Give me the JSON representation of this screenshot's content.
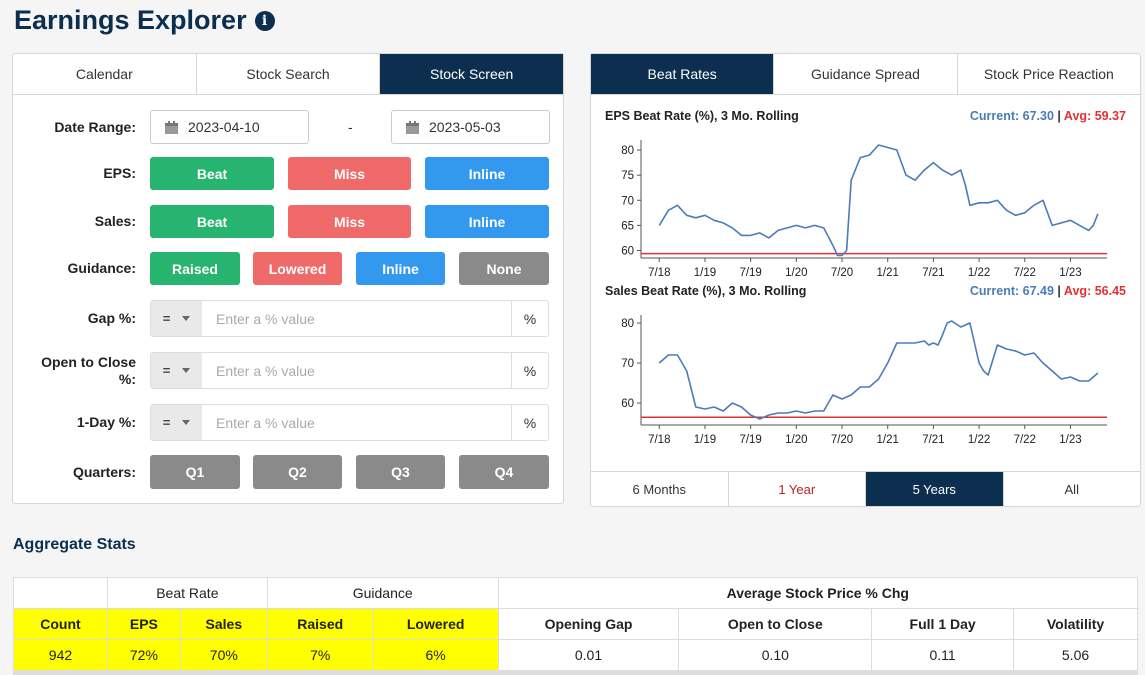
{
  "page": {
    "title": "Earnings Explorer",
    "info_icon": "i"
  },
  "left_tabs": [
    {
      "label": "Calendar",
      "active": false
    },
    {
      "label": "Stock Search",
      "active": false
    },
    {
      "label": "Stock Screen",
      "active": true
    }
  ],
  "filters": {
    "date_range": {
      "label": "Date Range:",
      "start": "2023-04-10",
      "separator": "-",
      "end": "2023-05-03"
    },
    "eps": {
      "label": "EPS:",
      "options": [
        "Beat",
        "Miss",
        "Inline"
      ]
    },
    "sales": {
      "label": "Sales:",
      "options": [
        "Beat",
        "Miss",
        "Inline"
      ]
    },
    "guidance": {
      "label": "Guidance:",
      "options": [
        "Raised",
        "Lowered",
        "Inline",
        "None"
      ]
    },
    "gap": {
      "label": "Gap %:",
      "operator": "=",
      "placeholder": "Enter a % value",
      "unit": "%"
    },
    "open_to_close": {
      "label_line1": "Open to Close",
      "label_line2": "%:",
      "operator": "=",
      "placeholder": "Enter a % value",
      "unit": "%"
    },
    "one_day": {
      "label": "1-Day %:",
      "operator": "=",
      "placeholder": "Enter a % value",
      "unit": "%"
    },
    "quarters": {
      "label": "Quarters:",
      "options": [
        "Q1",
        "Q2",
        "Q3",
        "Q4"
      ]
    }
  },
  "right_tabs": [
    {
      "label": "Beat Rates",
      "active": true
    },
    {
      "label": "Guidance Spread",
      "active": false
    },
    {
      "label": "Stock Price Reaction",
      "active": false
    }
  ],
  "range_tabs": [
    {
      "label": "6 Months",
      "active": false
    },
    {
      "label": "1 Year",
      "active": false
    },
    {
      "label": "5 Years",
      "active": true
    },
    {
      "label": "All",
      "active": false
    }
  ],
  "colors": {
    "navy": "#0d2f4f",
    "line": "#4a7cb8",
    "avg_line": "#e03232",
    "highlight": "#ffff00"
  },
  "chart_data": [
    {
      "type": "line",
      "title": "EPS Beat Rate (%), 3 Mo. Rolling",
      "current_label": "Current: 67.30",
      "separator": "|",
      "avg_label": "Avg: 59.37",
      "current": 67.3,
      "avg": 59.37,
      "ylim": [
        58.5,
        82
      ],
      "yticks": [
        60,
        65,
        70,
        75,
        80
      ],
      "xticks": [
        "7/18",
        "1/19",
        "7/19",
        "1/20",
        "7/20",
        "1/21",
        "7/21",
        "1/22",
        "7/22",
        "1/23"
      ],
      "x": [
        2018.5,
        2018.6,
        2018.7,
        2018.8,
        2018.9,
        2019.0,
        2019.1,
        2019.2,
        2019.3,
        2019.4,
        2019.5,
        2019.6,
        2019.7,
        2019.8,
        2019.9,
        2020.0,
        2020.1,
        2020.2,
        2020.3,
        2020.4,
        2020.45,
        2020.5,
        2020.55,
        2020.6,
        2020.7,
        2020.8,
        2020.9,
        2021.0,
        2021.1,
        2021.2,
        2021.3,
        2021.4,
        2021.5,
        2021.6,
        2021.7,
        2021.8,
        2021.85,
        2021.9,
        2022.0,
        2022.1,
        2022.2,
        2022.3,
        2022.4,
        2022.5,
        2022.6,
        2022.7,
        2022.8,
        2022.9,
        2023.0,
        2023.1,
        2023.2,
        2023.25,
        2023.3
      ],
      "series": [
        {
          "name": "EPS Beat Rate",
          "values": [
            65,
            68,
            69,
            67,
            66.5,
            67,
            66,
            65.5,
            64.5,
            63,
            63,
            63.5,
            62.5,
            64,
            64.5,
            65,
            64.5,
            65,
            64.5,
            61,
            59,
            59,
            60,
            74,
            78.5,
            79,
            81,
            80.5,
            80,
            75,
            74,
            76,
            77.5,
            76,
            75,
            76,
            73,
            69,
            69.5,
            69.5,
            70,
            68,
            67,
            67.5,
            69,
            70,
            65,
            65.5,
            66,
            65,
            64,
            65,
            67.3
          ]
        }
      ]
    },
    {
      "type": "line",
      "title": "Sales Beat Rate (%), 3 Mo. Rolling",
      "current_label": "Current: 67.49",
      "separator": "|",
      "avg_label": "Avg: 56.45",
      "current": 67.49,
      "avg": 56.45,
      "ylim": [
        54.5,
        82
      ],
      "yticks": [
        60,
        70,
        80
      ],
      "xticks": [
        "7/18",
        "1/19",
        "7/19",
        "1/20",
        "7/20",
        "1/21",
        "7/21",
        "1/22",
        "7/22",
        "1/23"
      ],
      "x": [
        2018.5,
        2018.6,
        2018.7,
        2018.8,
        2018.9,
        2019.0,
        2019.1,
        2019.2,
        2019.3,
        2019.4,
        2019.5,
        2019.6,
        2019.7,
        2019.8,
        2019.9,
        2020.0,
        2020.1,
        2020.2,
        2020.3,
        2020.4,
        2020.5,
        2020.6,
        2020.7,
        2020.8,
        2020.9,
        2021.0,
        2021.1,
        2021.2,
        2021.3,
        2021.4,
        2021.45,
        2021.5,
        2021.55,
        2021.6,
        2021.65,
        2021.7,
        2021.8,
        2021.9,
        2022.0,
        2022.05,
        2022.1,
        2022.2,
        2022.3,
        2022.4,
        2022.5,
        2022.6,
        2022.7,
        2022.8,
        2022.9,
        2023.0,
        2023.1,
        2023.2,
        2023.3
      ],
      "series": [
        {
          "name": "Sales Beat Rate",
          "values": [
            70,
            72,
            72,
            68,
            59,
            58.5,
            59,
            58,
            60,
            59,
            57,
            56,
            57,
            57.5,
            57.5,
            58,
            57.5,
            58,
            58,
            62,
            61,
            62,
            64,
            64,
            66,
            70,
            75,
            75,
            75,
            75.5,
            74.5,
            75,
            74.5,
            77,
            80,
            80.5,
            79,
            80,
            70,
            68,
            67,
            74.5,
            73.5,
            73,
            72,
            72.5,
            70,
            68,
            66,
            66.5,
            65.5,
            65.5,
            67.5
          ]
        }
      ]
    }
  ],
  "aggregate": {
    "title": "Aggregate Stats",
    "group_headers": {
      "beat_rate": "Beat Rate",
      "guidance": "Guidance",
      "avg_price": "Average Stock Price % Chg"
    },
    "columns": [
      "Count",
      "EPS",
      "Sales",
      "Raised",
      "Lowered",
      "Opening Gap",
      "Open to Close",
      "Full 1 Day",
      "Volatility"
    ],
    "values": [
      "942",
      "72%",
      "70%",
      "7%",
      "6%",
      "0.01",
      "0.10",
      "0.11",
      "5.06"
    ]
  }
}
